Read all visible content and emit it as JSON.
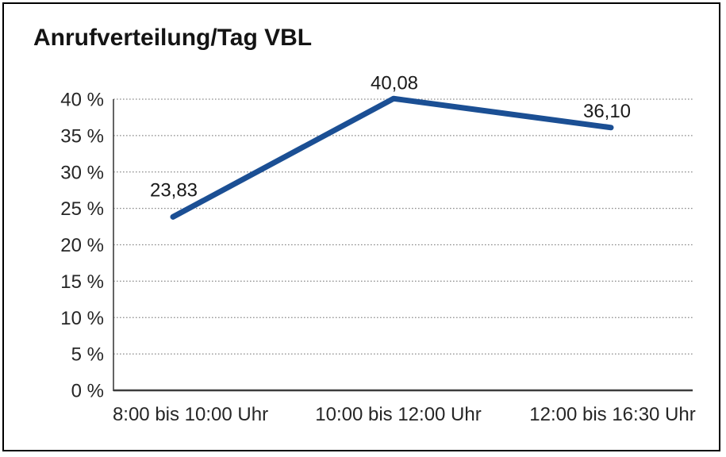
{
  "chart_data": {
    "type": "line",
    "title": "Anrufverteilung/Tag VBL",
    "categories": [
      "8:00 bis 10:00 Uhr",
      "10:00 bis 12:00 Uhr",
      "12:00 bis 16:30 Uhr"
    ],
    "values": [
      23.83,
      40.08,
      36.1
    ],
    "data_labels": [
      "23,83",
      "40,08",
      "36,10"
    ],
    "y_tick_labels": [
      "0 %",
      "5 %",
      "10 %",
      "15 %",
      "20 %",
      "25 %",
      "30 %",
      "35 %",
      "40 %"
    ],
    "y_tick_values": [
      0,
      5,
      10,
      15,
      20,
      25,
      30,
      35,
      40
    ],
    "ylim": [
      0,
      40
    ],
    "xlabel": "",
    "ylabel": "",
    "grid": "horizontal-dotted",
    "legend": "none",
    "line_color": "#1B4F94",
    "grid_color": "#8C8C8C",
    "axis_color": "#3D3D3D",
    "text_color": "#262626",
    "background": "#FFFFFF",
    "border_color": "#000000"
  }
}
